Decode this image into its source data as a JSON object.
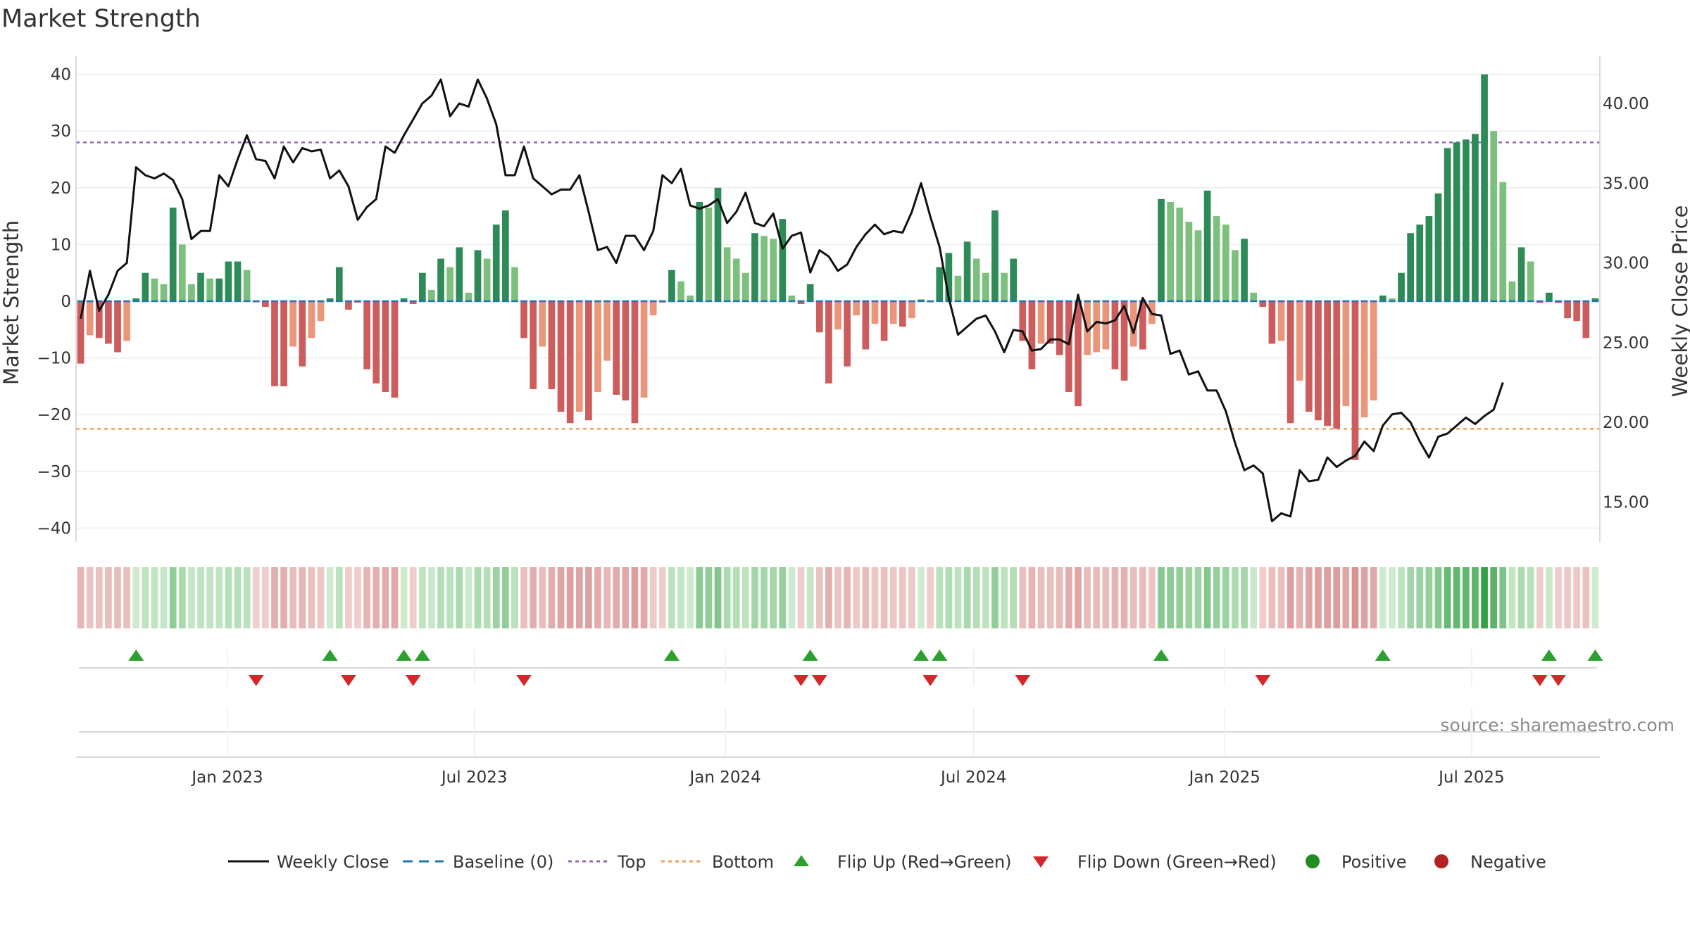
{
  "chart_data": {
    "type": "bar+line",
    "title": "Market Strength",
    "ylabel_left": "Market Strength",
    "ylabel_right": "Weekly Close Price",
    "left_ylim": [
      -40,
      40
    ],
    "left_ticks": [
      "40",
      "30",
      "20",
      "10",
      "0",
      "−10",
      "−20",
      "−30",
      "−40"
    ],
    "left_tick_values": [
      40,
      30,
      20,
      10,
      0,
      -10,
      -20,
      -30,
      -40
    ],
    "right_ylim": [
      13.0,
      42.5
    ],
    "right_ticks": [
      "40.00",
      "35.00",
      "30.00",
      "25.00",
      "20.00",
      "15.00"
    ],
    "right_tick_values": [
      40,
      35,
      30,
      25,
      20,
      15
    ],
    "top_line": 28,
    "bottom_line": -22.5,
    "x_start": "2022-09-12",
    "x_end": "2025-10-03",
    "x_ticks": [
      {
        "label": "Jan 2023",
        "date": "2023-01-01"
      },
      {
        "label": "Jul 2023",
        "date": "2023-07-01"
      },
      {
        "label": "Jan 2024",
        "date": "2024-01-01"
      },
      {
        "label": "Jul 2024",
        "date": "2024-07-01"
      },
      {
        "label": "Jan 2025",
        "date": "2025-01-01"
      },
      {
        "label": "Jul 2025",
        "date": "2025-07-01"
      }
    ],
    "strength": [
      -11,
      -6,
      -6.5,
      -7.5,
      -9,
      -7,
      0.5,
      5,
      4,
      3,
      16.5,
      10,
      3,
      5,
      4,
      4,
      7,
      7,
      5.5,
      -0.2,
      -1,
      -15,
      -15,
      -8,
      -11.5,
      -6.5,
      -3.5,
      0.5,
      6,
      -1.5,
      -0.3,
      -12,
      -14.5,
      -16,
      -17,
      0.5,
      -0.5,
      5,
      2,
      7.5,
      6,
      9.5,
      1.5,
      9,
      7.5,
      13.5,
      16,
      6,
      -6.5,
      -15.5,
      -8,
      -15.5,
      -19.5,
      -21.5,
      -19.5,
      -21,
      -16,
      -10.5,
      -16.5,
      -17.5,
      -21.5,
      -17,
      -2.5,
      -0.3,
      5.5,
      3.5,
      1,
      17.5,
      16.5,
      20,
      9.5,
      7.5,
      5,
      12,
      11.5,
      11,
      14.5,
      1,
      -0.5,
      3,
      -5.5,
      -14.5,
      -5,
      -11.5,
      -2.5,
      -8.5,
      -4,
      -7,
      -4,
      -4.5,
      -3,
      0.3,
      -0.2,
      6,
      8.5,
      4.5,
      10.5,
      7.5,
      5,
      16,
      5,
      7.5,
      -7,
      -12,
      -7.5,
      -7.5,
      -9.5,
      -16,
      -18.5,
      -9.5,
      -9,
      -8.5,
      -12,
      -14,
      -8,
      -8.5,
      -4,
      18,
      17.5,
      16.5,
      14,
      12.5,
      19.5,
      15,
      13.5,
      9,
      11,
      1.5,
      -1,
      -7.5,
      -7,
      -21.5,
      -14,
      -19.5,
      -21,
      -22,
      -22.5,
      -18.5,
      -28,
      -20.5,
      -17.5,
      1,
      0.5,
      5,
      12,
      13.5,
      15,
      19,
      27,
      28,
      28.5,
      29.5,
      40,
      30,
      21,
      3.5,
      9.5,
      7,
      -0.3,
      1.5,
      -0.3,
      -3,
      -3.5,
      -6.5,
      0.5
    ],
    "close": [
      26.5,
      29.5,
      27.0,
      28.0,
      29.5,
      30.0,
      36.0,
      35.5,
      35.3,
      35.6,
      35.2,
      34.0,
      31.5,
      32.0,
      32.0,
      35.5,
      34.8,
      36.5,
      38.0,
      36.5,
      36.4,
      35.3,
      37.3,
      36.3,
      37.2,
      37.0,
      37.1,
      35.3,
      35.8,
      34.8,
      32.7,
      33.5,
      34.0,
      37.3,
      36.9,
      38.0,
      39.0,
      40.0,
      40.5,
      41.5,
      39.2,
      40.0,
      39.8,
      41.5,
      40.3,
      38.7,
      35.5,
      35.5,
      37.3,
      35.3,
      34.8,
      34.3,
      34.6,
      34.6,
      35.5,
      33.2,
      30.8,
      31.0,
      30.0,
      31.7,
      31.7,
      30.8,
      32.0,
      35.5,
      35.0,
      35.9,
      33.6,
      33.4,
      33.6,
      34.0,
      32.5,
      33.2,
      34.4,
      32.5,
      32.3,
      33.1,
      30.9,
      31.7,
      31.9,
      29.4,
      30.8,
      30.4,
      29.5,
      29.9,
      31.0,
      31.8,
      32.4,
      31.8,
      32.0,
      31.9,
      33.2,
      35.0,
      32.9,
      31.0,
      27.8,
      25.5,
      26.0,
      26.5,
      26.7,
      25.7,
      24.4,
      25.8,
      25.7,
      24.5,
      24.6,
      25.2,
      25.2,
      24.9,
      28.0,
      25.7,
      26.3,
      26.2,
      26.4,
      27.3,
      25.6,
      27.8,
      26.8,
      26.7,
      24.3,
      24.5,
      23.0,
      23.2,
      22.0,
      22.0,
      20.7,
      18.7,
      17.0,
      17.3,
      16.8,
      13.8,
      14.3,
      14.1,
      17.0,
      16.3,
      16.4,
      17.8,
      17.2,
      17.6,
      17.9,
      18.8,
      18.2,
      19.8,
      20.5,
      20.6,
      20.0,
      18.8,
      17.8,
      19.1,
      19.3,
      19.8,
      20.3,
      19.9,
      20.4,
      20.8,
      22.5
    ]
  },
  "legend": [
    {
      "label": "Weekly Close"
    },
    {
      "label": "Baseline (0)"
    },
    {
      "label": "Top"
    },
    {
      "label": "Bottom"
    },
    {
      "label": "Flip Up (Red→Green)"
    },
    {
      "label": "Flip Down (Green→Red)"
    },
    {
      "label": "Positive"
    },
    {
      "label": "Negative"
    }
  ],
  "source_text": "source: sharemaestro.com",
  "colors": {
    "pos_strong": "#2e8b57",
    "pos_weak": "#7dc07d",
    "neg_strong": "#cd5c5c",
    "neg_weak": "#e9967a",
    "line": "#111111",
    "baseline": "#1f77b4",
    "top": "#9467bd",
    "bottom": "#f0a050",
    "flip_up": "#2ca02c",
    "flip_down": "#d62728",
    "positive": "#228b22",
    "negative": "#b22222"
  }
}
